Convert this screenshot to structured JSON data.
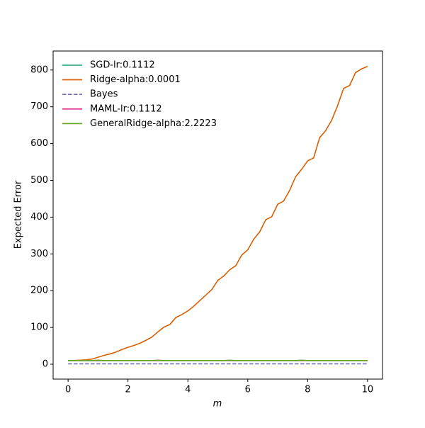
{
  "chart_data": {
    "type": "line",
    "xlabel": "m",
    "ylabel": "Expected Error",
    "x": [
      0,
      0.2,
      0.4,
      0.6,
      0.8,
      1,
      1.2,
      1.4,
      1.6,
      1.8,
      2,
      2.2,
      2.4,
      2.6,
      2.8,
      3,
      3.2,
      3.4,
      3.6,
      3.8,
      4,
      4.2,
      4.4,
      4.6,
      4.8,
      5,
      5.2,
      5.4,
      5.6,
      5.8,
      6,
      6.2,
      6.4,
      6.6,
      6.8,
      7,
      7.2,
      7.4,
      7.6,
      7.8,
      8,
      8.2,
      8.4,
      8.6,
      8.8,
      9,
      9.2,
      9.4,
      9.6,
      9.8,
      10
    ],
    "series": [
      {
        "name": "SGD-lr:0.1112",
        "color": "#1b9e77",
        "linestyle": "solid",
        "values": [
          10,
          10,
          10,
          10,
          10,
          10,
          10,
          10,
          10,
          10,
          10,
          10,
          10,
          10,
          10,
          10,
          10,
          10,
          10,
          10,
          10,
          10,
          10,
          10,
          10,
          10,
          10,
          10,
          10,
          10,
          10,
          10,
          10,
          10,
          10,
          10,
          10,
          10,
          10,
          10,
          10,
          10,
          10,
          10,
          10,
          10,
          10,
          10,
          10,
          10,
          10
        ]
      },
      {
        "name": "Ridge-alpha:0.0001",
        "color": "#d95f02",
        "linestyle": "solid",
        "values": [
          10,
          10,
          11,
          12,
          14,
          19,
          24,
          28,
          33,
          40,
          46,
          51,
          57,
          65,
          74,
          88,
          101,
          108,
          127,
          135,
          145,
          158,
          173,
          188,
          203,
          228,
          240,
          257,
          268,
          297,
          311,
          340,
          360,
          393,
          401,
          435,
          444,
          473,
          510,
          530,
          553,
          561,
          616,
          635,
          663,
          703,
          750,
          758,
          793,
          803,
          810
        ]
      },
      {
        "name": "Bayes",
        "color": "#7570b3",
        "linestyle": "dashed",
        "values": [
          1,
          1,
          1,
          1,
          1,
          1,
          1,
          1,
          1,
          1,
          1,
          1,
          1,
          1,
          1,
          1,
          1,
          1,
          1,
          1,
          1,
          1,
          1,
          1,
          1,
          1,
          1,
          1,
          1,
          1,
          1,
          1,
          1,
          1,
          1,
          1,
          1,
          1,
          1,
          1,
          1,
          1,
          1,
          1,
          1,
          1,
          1,
          1,
          1,
          1,
          1
        ]
      },
      {
        "name": "MAML-lr:0.1112",
        "color": "#e7298a",
        "linestyle": "solid",
        "values": [
          10,
          10,
          10,
          10,
          10,
          10,
          10,
          10,
          10,
          10,
          10,
          10,
          10,
          10,
          10,
          10,
          10,
          10,
          10,
          10,
          10,
          10,
          10,
          10,
          10,
          10,
          10,
          10,
          10,
          10,
          10,
          10,
          10,
          10,
          10,
          10,
          10,
          10,
          10,
          10,
          10,
          10,
          10,
          10,
          10,
          10,
          10,
          10,
          10,
          10,
          10
        ]
      },
      {
        "name": "GeneralRidge-alpha:2.2223",
        "color": "#66a61e",
        "linestyle": "solid",
        "values": [
          10,
          10,
          10,
          10,
          10,
          11,
          10,
          10,
          10,
          10,
          10,
          10,
          10,
          10,
          10,
          11,
          10,
          10,
          10,
          10,
          10,
          10,
          10,
          10,
          10,
          10,
          10,
          11,
          10,
          10,
          10,
          10,
          10,
          10,
          10,
          10,
          10,
          10,
          10,
          11,
          10,
          10,
          10,
          10,
          10,
          10,
          10,
          10,
          10,
          10,
          10
        ]
      }
    ],
    "xlim": [
      -0.5,
      10.5
    ],
    "ylim": [
      -40.5,
      851.7
    ],
    "xticks": [
      0,
      2,
      4,
      6,
      8,
      10
    ],
    "yticks": [
      0,
      100,
      200,
      300,
      400,
      500,
      600,
      700,
      800
    ],
    "legend": "upper left",
    "grid": false
  }
}
